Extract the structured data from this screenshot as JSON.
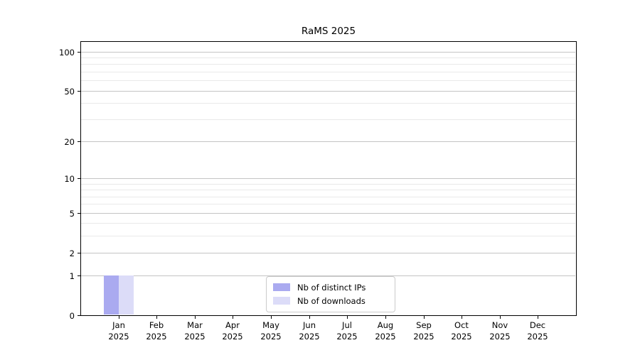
{
  "chart_data": {
    "type": "bar",
    "title": "RaMS 2025",
    "categories": [
      "Jan",
      "Feb",
      "Mar",
      "Apr",
      "May",
      "Jun",
      "Jul",
      "Aug",
      "Sep",
      "Oct",
      "Nov",
      "Dec"
    ],
    "category_year": "2025",
    "series": [
      {
        "name": "Nb of distinct IPs",
        "color": "#aaaaf0",
        "values": [
          1,
          0,
          0,
          0,
          0,
          0,
          0,
          0,
          0,
          0,
          0,
          0
        ]
      },
      {
        "name": "Nb of downloads",
        "color": "#dcdcf8",
        "values": [
          1,
          0,
          0,
          0,
          0,
          0,
          0,
          0,
          0,
          0,
          0,
          0
        ]
      }
    ],
    "xlabel": "",
    "ylabel": "",
    "yscale": "log1p",
    "ylim": [
      0,
      120
    ],
    "y_major_ticks": [
      0,
      1,
      2,
      5,
      10,
      20,
      50,
      100
    ],
    "y_minor_ticks": [
      3,
      4,
      6,
      7,
      8,
      9,
      30,
      40,
      60,
      70,
      80,
      90
    ],
    "grid": "horizontal major and minor",
    "legend_position": "lower center inside",
    "colors": {
      "major_grid": "#c4c4c4",
      "minor_grid": "#e9e9e9",
      "spine": "#000000",
      "background": "#ffffff",
      "text": "#000000"
    }
  }
}
